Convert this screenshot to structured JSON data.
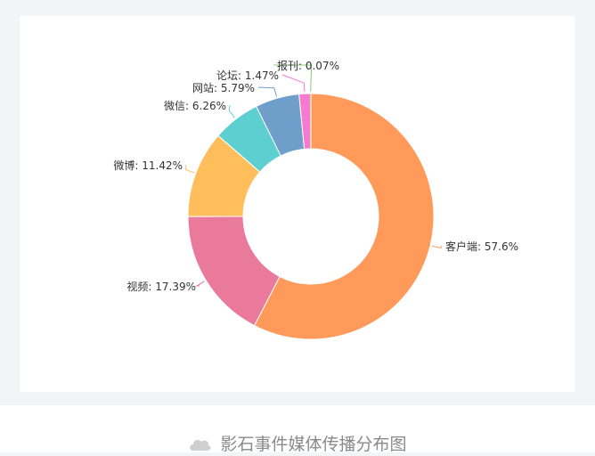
{
  "chart_data": {
    "type": "pie",
    "style": "donut",
    "title": "",
    "slices": [
      {
        "label": "客户端",
        "value": 57.6,
        "display": "客户端: 57.6%",
        "color": "#ff9a5a"
      },
      {
        "label": "视频",
        "value": 17.39,
        "display": "视频: 17.39%",
        "color": "#ea7a9c"
      },
      {
        "label": "微博",
        "value": 11.42,
        "display": "微博: 11.42%",
        "color": "#ffbe5c"
      },
      {
        "label": "微信",
        "value": 6.26,
        "display": "微信: 6.26%",
        "color": "#5ecfd1"
      },
      {
        "label": "网站",
        "value": 5.79,
        "display": "网站: 5.79%",
        "color": "#6f9ecb"
      },
      {
        "label": "论坛",
        "value": 1.47,
        "display": "论坛: 1.47%",
        "color": "#f57ad0"
      },
      {
        "label": "报刊",
        "value": 0.07,
        "display": "报刊: 0.07%",
        "color": "#8fc97a"
      }
    ]
  },
  "caption": {
    "text": "影石事件媒体传播分布图",
    "icon": "cloud-icon"
  }
}
